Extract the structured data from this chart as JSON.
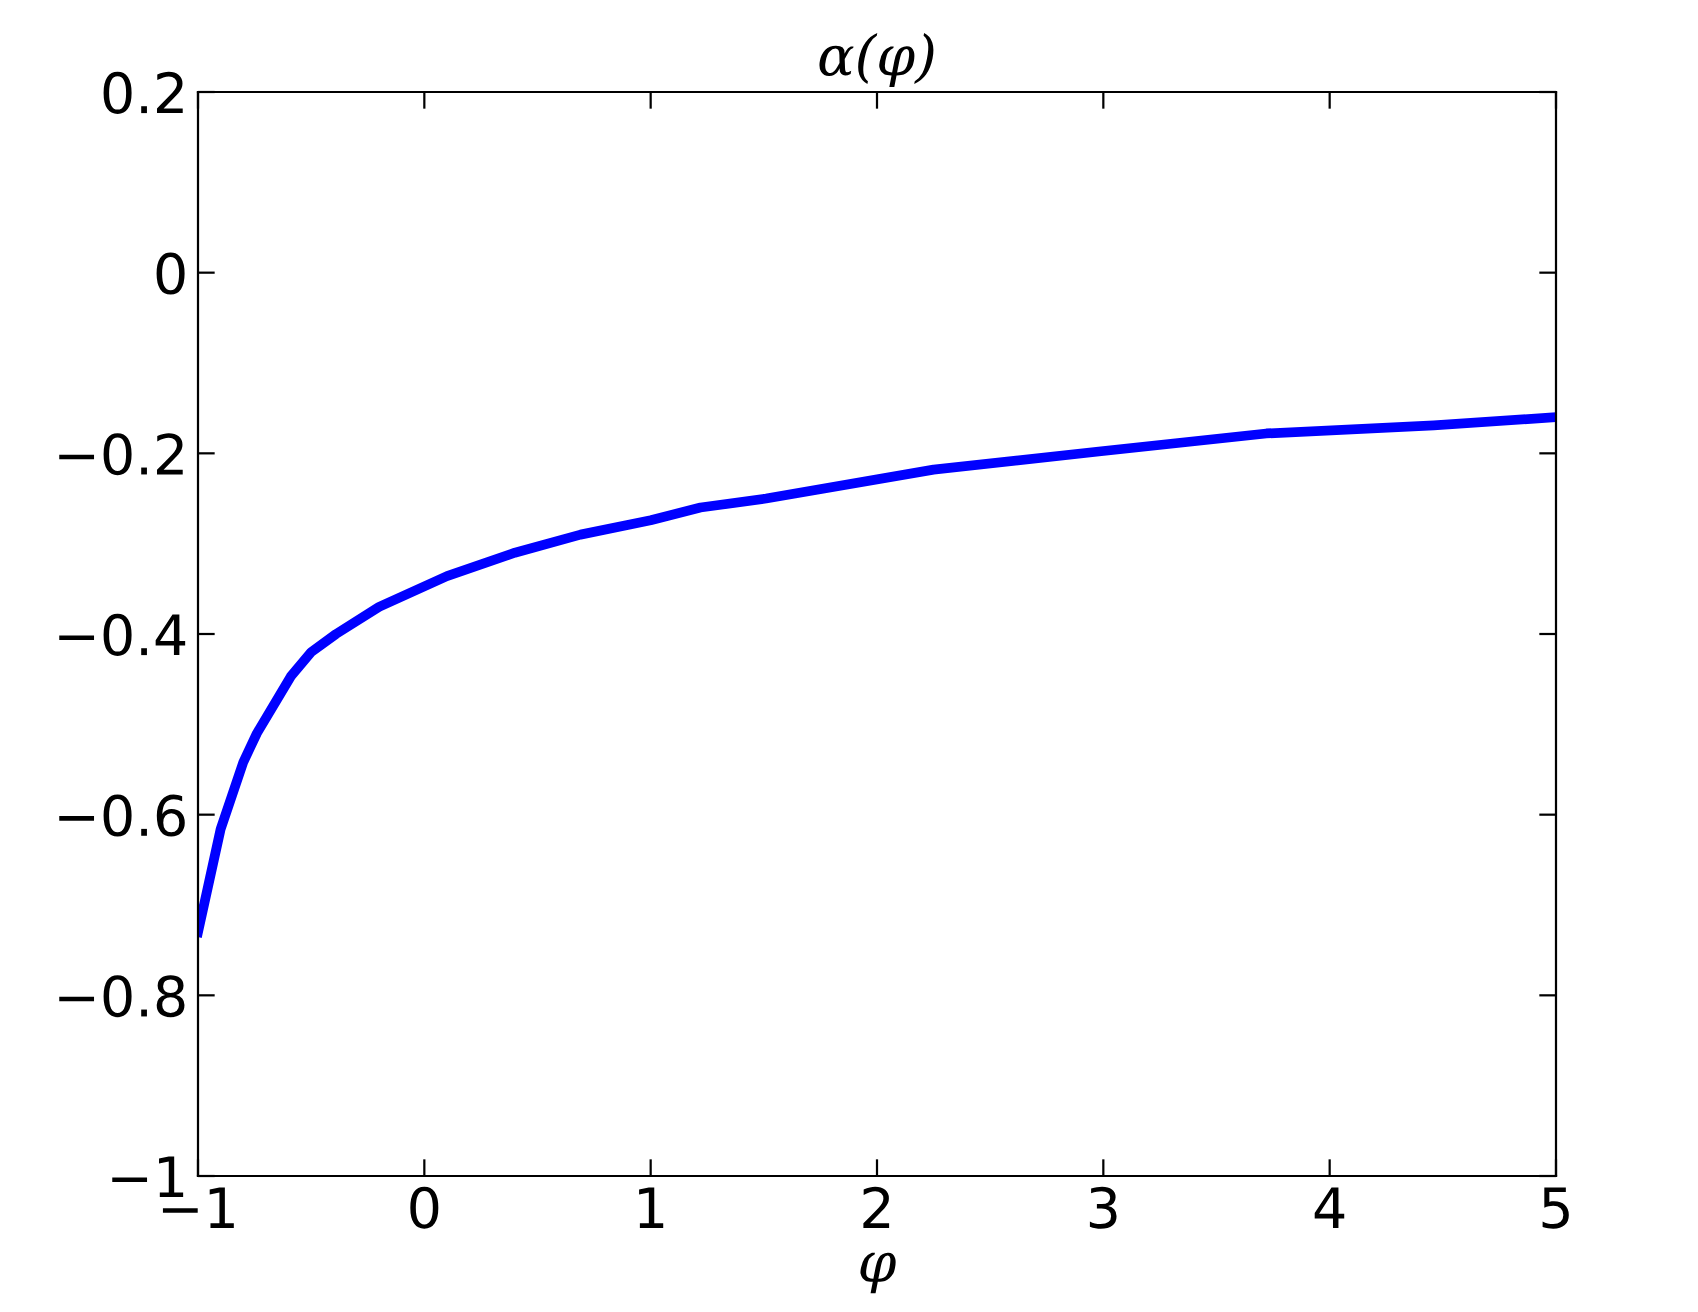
{
  "chart_data": {
    "type": "line",
    "title": "α(φ)",
    "xlabel": "φ",
    "series": [
      {
        "color": "#0000ff",
        "x": [
          -1,
          -0.9,
          -0.8,
          -0.74,
          -0.59,
          -0.5,
          -0.39,
          -0.2,
          0.1,
          0.4,
          0.69,
          1.0,
          1.22,
          1.51,
          2.25,
          2.98,
          3.72,
          4.46,
          5
        ],
        "values": [
          -0.73,
          -0.616,
          -0.542,
          -0.51,
          -0.447,
          -0.42,
          -0.4,
          -0.37,
          -0.336,
          -0.31,
          -0.29,
          -0.274,
          -0.26,
          -0.25,
          -0.218,
          -0.198,
          -0.178,
          -0.169,
          -0.16
        ]
      }
    ],
    "xlim": [
      -1,
      5
    ],
    "ylim": [
      -1,
      0.2
    ],
    "xticks": [
      -1,
      0,
      1,
      2,
      3,
      4,
      5
    ],
    "yticks": [
      {
        "value": -1,
        "label": "−1"
      },
      {
        "value": -0.8,
        "label": "−0.8"
      },
      {
        "value": -0.6,
        "label": "−0.6"
      },
      {
        "value": -0.4,
        "label": "−0.4"
      },
      {
        "value": -0.2,
        "label": "−0.2"
      },
      0,
      0.2
    ],
    "grid": false,
    "line_style": "solid",
    "marker": "none"
  }
}
